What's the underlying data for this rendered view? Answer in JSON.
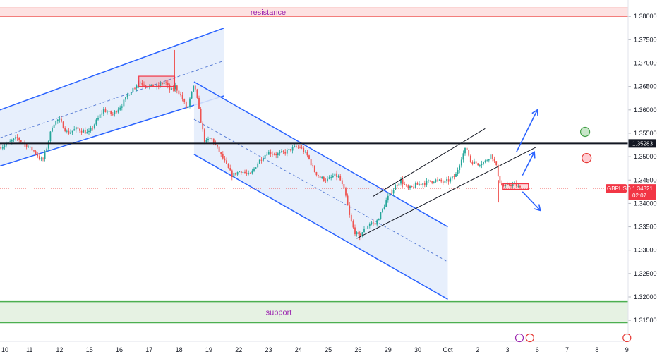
{
  "chart_data": {
    "type": "candlestick",
    "symbol": "GBPUSD",
    "colors": {
      "up": "#26a69a",
      "down": "#ef5350",
      "channel": "#2962ff",
      "channel_fill": "#e3ecfb",
      "resistance_fill": "#fde2e2",
      "resistance_line": "#ef5350",
      "support_fill": "#e6f2e3",
      "support_line": "#4caf50",
      "level_line": "#131722",
      "highlight_box": "#f23645",
      "pill": "#f23645"
    },
    "price_axis": {
      "min": 1.3105,
      "max": 1.3835,
      "ticks": [
        "1.38000",
        "1.37500",
        "1.37000",
        "1.36500",
        "1.36000",
        "1.35500",
        "1.35000",
        "1.34500",
        "1.34000",
        "1.33500",
        "1.33000",
        "1.32500",
        "1.32000",
        "1.31500"
      ]
    },
    "time_axis": {
      "labels": [
        {
          "text": "10",
          "x": 0
        },
        {
          "text": "11",
          "x": 1
        },
        {
          "text": "12",
          "x": 2
        },
        {
          "text": "15",
          "x": 3
        },
        {
          "text": "16",
          "x": 4
        },
        {
          "text": "17",
          "x": 5
        },
        {
          "text": "18",
          "x": 6
        },
        {
          "text": "19",
          "x": 7
        },
        {
          "text": "22",
          "x": 8
        },
        {
          "text": "23",
          "x": 9
        },
        {
          "text": "24",
          "x": 10
        },
        {
          "text": "25",
          "x": 11
        },
        {
          "text": "26",
          "x": 12
        },
        {
          "text": "29",
          "x": 13
        },
        {
          "text": "30",
          "x": 14
        },
        {
          "text": "Oct",
          "x": 15
        },
        {
          "text": "2",
          "x": 16
        },
        {
          "text": "3",
          "x": 17
        },
        {
          "text": "6",
          "x": 18
        },
        {
          "text": "7",
          "x": 19
        },
        {
          "text": "8",
          "x": 20
        },
        {
          "text": "9",
          "x": 21
        }
      ]
    },
    "key_points": [
      [
        0.0,
        1.352
      ],
      [
        0.35,
        1.353
      ],
      [
        0.6,
        1.354
      ],
      [
        0.9,
        1.3525
      ],
      [
        1.2,
        1.351
      ],
      [
        1.45,
        1.349
      ],
      [
        1.6,
        1.352
      ],
      [
        1.8,
        1.357
      ],
      [
        2.0,
        1.358
      ],
      [
        2.3,
        1.355
      ],
      [
        2.6,
        1.356
      ],
      [
        3.0,
        1.355
      ],
      [
        3.3,
        1.358
      ],
      [
        3.5,
        1.36
      ],
      [
        3.8,
        1.359
      ],
      [
        4.1,
        1.361
      ],
      [
        4.4,
        1.364
      ],
      [
        4.7,
        1.366
      ],
      [
        5.0,
        1.365
      ],
      [
        5.3,
        1.365
      ],
      [
        5.55,
        1.366
      ],
      [
        5.75,
        1.364
      ],
      [
        5.9,
        1.365
      ],
      [
        6.1,
        1.363
      ],
      [
        6.3,
        1.36
      ],
      [
        6.45,
        1.3635
      ],
      [
        6.55,
        1.3655
      ],
      [
        6.75,
        1.358
      ],
      [
        6.9,
        1.353
      ],
      [
        7.1,
        1.354
      ],
      [
        7.3,
        1.352
      ],
      [
        7.55,
        1.349
      ],
      [
        7.8,
        1.346
      ],
      [
        8.1,
        1.347
      ],
      [
        8.4,
        1.346
      ],
      [
        8.7,
        1.349
      ],
      [
        9.0,
        1.351
      ],
      [
        9.3,
        1.3505
      ],
      [
        9.6,
        1.351
      ],
      [
        9.9,
        1.352
      ],
      [
        10.1,
        1.352
      ],
      [
        10.35,
        1.35
      ],
      [
        10.55,
        1.347
      ],
      [
        10.75,
        1.3455
      ],
      [
        11.0,
        1.345
      ],
      [
        11.25,
        1.346
      ],
      [
        11.4,
        1.3455
      ],
      [
        11.6,
        1.342
      ],
      [
        11.75,
        1.337
      ],
      [
        11.9,
        1.334
      ],
      [
        12.05,
        1.333
      ],
      [
        12.25,
        1.3345
      ],
      [
        12.45,
        1.336
      ],
      [
        12.6,
        1.3355
      ],
      [
        12.8,
        1.338
      ],
      [
        13.0,
        1.341
      ],
      [
        13.2,
        1.343
      ],
      [
        13.45,
        1.345
      ],
      [
        13.7,
        1.343
      ],
      [
        14.0,
        1.344
      ],
      [
        14.3,
        1.3445
      ],
      [
        14.6,
        1.345
      ],
      [
        14.9,
        1.3445
      ],
      [
        15.1,
        1.345
      ],
      [
        15.3,
        1.346
      ],
      [
        15.5,
        1.35
      ],
      [
        15.65,
        1.352
      ],
      [
        15.8,
        1.349
      ],
      [
        16.05,
        1.3485
      ],
      [
        16.3,
        1.349
      ],
      [
        16.5,
        1.3505
      ],
      [
        16.65,
        1.348
      ],
      [
        16.8,
        1.344
      ],
      [
        16.95,
        1.3435
      ],
      [
        17.1,
        1.344
      ],
      [
        17.3,
        1.344
      ],
      [
        17.45,
        1.3432
      ]
    ],
    "spikes": [
      {
        "x": 5.85,
        "high": 1.3728,
        "low": 1.364
      },
      {
        "x": 16.7,
        "high": 1.345,
        "low": 1.3402
      },
      {
        "x": 12.05,
        "high": 1.334,
        "low": 1.3322
      }
    ],
    "annotations": {
      "resistance": {
        "label": "resistance",
        "price_top": 1.3818,
        "price_bottom": 1.38
      },
      "support": {
        "label": "support",
        "price_top": 1.319,
        "price_bottom": 1.3145
      },
      "level": {
        "price": 1.35283,
        "label": "1.35283"
      },
      "current": {
        "symbol": "GBPUSD",
        "price": 1.34321,
        "label": "1.34321",
        "countdown": "02:07"
      },
      "channels": [
        {
          "name": "ascending",
          "upper": [
            [
              0.0,
              1.36
            ],
            [
              7.5,
              1.3775
            ]
          ],
          "lower": [
            [
              0.0,
              1.348
            ],
            [
              7.5,
              1.363
            ]
          ],
          "mid": [
            [
              0.0,
              1.354
            ],
            [
              7.5,
              1.3705
            ]
          ]
        },
        {
          "name": "descending",
          "upper": [
            [
              6.5,
              1.366
            ],
            [
              15.0,
              1.335
            ]
          ],
          "lower": [
            [
              6.5,
              1.3505
            ],
            [
              15.0,
              1.3195
            ]
          ],
          "mid": [
            [
              6.5,
              1.358
            ],
            [
              15.0,
              1.3275
            ]
          ]
        }
      ],
      "rising_wedge": {
        "upper": [
          [
            12.5,
            1.3415
          ],
          [
            16.25,
            1.356
          ]
        ],
        "lower": [
          [
            11.95,
            1.3325
          ],
          [
            17.95,
            1.352
          ]
        ]
      },
      "boxes": [
        {
          "x1": 4.65,
          "x2": 5.85,
          "top": 1.3672,
          "bottom": 1.365
        },
        {
          "x1": 16.85,
          "x2": 17.7,
          "top": 1.3442,
          "bottom": 1.343
        }
      ],
      "arrows": [
        {
          "from": [
            17.3,
            1.351
          ],
          "to": [
            18.0,
            1.36
          ]
        },
        {
          "from": [
            17.5,
            1.346
          ],
          "to": [
            17.9,
            1.351
          ]
        },
        {
          "from": [
            17.5,
            1.3425
          ],
          "to": [
            18.1,
            1.3385
          ]
        }
      ],
      "circles": [
        {
          "x": 19.6,
          "price": 1.3553,
          "color": "green"
        },
        {
          "x": 19.65,
          "price": 1.3497,
          "color": "red"
        }
      ]
    }
  }
}
